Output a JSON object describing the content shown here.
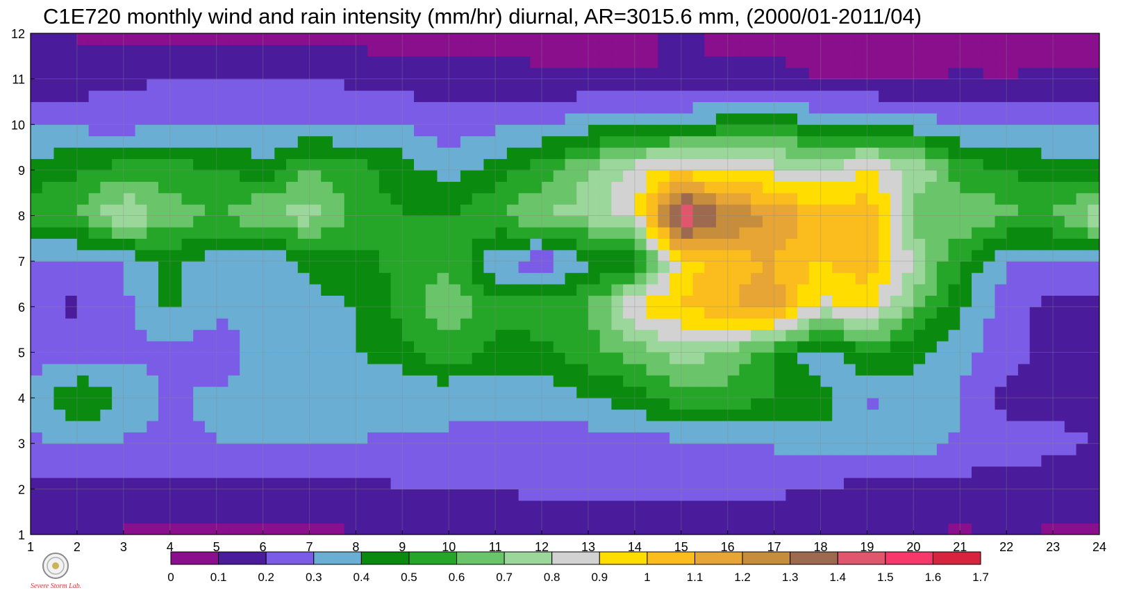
{
  "chart_data": {
    "type": "heatmap",
    "title": "C1E720 monthly wind and rain intensity (mm/hr) diurnal, AR=3015.6 mm, (2000/01-2011/04)",
    "xlabel": "",
    "ylabel": "",
    "x": [
      1,
      2,
      3,
      4,
      5,
      6,
      7,
      8,
      9,
      10,
      11,
      12,
      13,
      14,
      15,
      16,
      17,
      18,
      19,
      20,
      21,
      22,
      23,
      24
    ],
    "y": [
      1,
      2,
      3,
      4,
      5,
      6,
      7,
      8,
      9,
      10,
      11,
      12
    ],
    "xlim": [
      1,
      24
    ],
    "ylim": [
      1,
      12
    ],
    "grid": true,
    "z": [
      [
        0.1,
        0.1,
        0.09,
        0.08,
        0.09,
        0.08,
        0.08,
        0.09,
        0.1,
        0.13,
        0.12,
        0.11,
        0.12,
        0.11,
        0.09,
        0.11,
        0.12,
        0.13,
        0.11,
        0.1,
        0.09,
        0.1,
        0.09,
        0.08
      ],
      [
        0.15,
        0.18,
        0.17,
        0.17,
        0.16,
        0.17,
        0.17,
        0.18,
        0.19,
        0.2,
        0.2,
        0.22,
        0.24,
        0.25,
        0.24,
        0.25,
        0.22,
        0.19,
        0.16,
        0.15,
        0.15,
        0.16,
        0.15,
        0.14
      ],
      [
        0.28,
        0.32,
        0.29,
        0.27,
        0.3,
        0.31,
        0.3,
        0.3,
        0.29,
        0.3,
        0.29,
        0.27,
        0.24,
        0.26,
        0.27,
        0.28,
        0.31,
        0.35,
        0.38,
        0.36,
        0.29,
        0.25,
        0.22,
        0.2
      ],
      [
        0.3,
        0.5,
        0.38,
        0.28,
        0.33,
        0.33,
        0.32,
        0.31,
        0.32,
        0.3,
        0.31,
        0.32,
        0.4,
        0.45,
        0.55,
        0.55,
        0.5,
        0.45,
        0.28,
        0.35,
        0.3,
        0.17,
        0.17,
        0.18
      ],
      [
        0.26,
        0.26,
        0.28,
        0.27,
        0.23,
        0.34,
        0.35,
        0.4,
        0.45,
        0.58,
        0.45,
        0.48,
        0.55,
        0.65,
        0.75,
        0.7,
        0.5,
        0.32,
        0.48,
        0.43,
        0.32,
        0.25,
        0.15,
        0.14
      ],
      [
        0.22,
        0.18,
        0.27,
        0.42,
        0.33,
        0.3,
        0.38,
        0.4,
        0.55,
        0.67,
        0.55,
        0.55,
        0.6,
        0.9,
        1.0,
        1.1,
        1.15,
        0.85,
        0.95,
        0.65,
        0.42,
        0.25,
        0.15,
        0.18
      ],
      [
        0.28,
        0.28,
        0.3,
        0.45,
        0.32,
        0.3,
        0.42,
        0.47,
        0.52,
        0.6,
        0.32,
        0.21,
        0.38,
        0.45,
        0.95,
        1.05,
        1.1,
        1.0,
        1.05,
        0.8,
        0.5,
        0.3,
        0.3,
        0.3
      ],
      [
        0.55,
        0.6,
        0.81,
        0.65,
        0.6,
        0.7,
        0.75,
        0.55,
        0.5,
        0.5,
        0.6,
        0.7,
        0.75,
        0.85,
        1.55,
        1.3,
        1.2,
        1.05,
        1.1,
        0.65,
        0.7,
        0.62,
        0.6,
        0.81
      ],
      [
        0.45,
        0.48,
        0.55,
        0.55,
        0.5,
        0.45,
        0.6,
        0.55,
        0.45,
        0.35,
        0.45,
        0.55,
        0.7,
        0.85,
        0.95,
        0.9,
        0.85,
        0.8,
        0.9,
        0.8,
        0.55,
        0.5,
        0.45,
        0.42
      ],
      [
        0.3,
        0.28,
        0.25,
        0.3,
        0.3,
        0.28,
        0.3,
        0.28,
        0.3,
        0.25,
        0.28,
        0.3,
        0.35,
        0.4,
        0.4,
        0.45,
        0.5,
        0.4,
        0.4,
        0.35,
        0.3,
        0.32,
        0.3,
        0.28
      ],
      [
        0.1,
        0.15,
        0.18,
        0.2,
        0.2,
        0.19,
        0.22,
        0.18,
        0.15,
        0.15,
        0.14,
        0.12,
        0.12,
        0.11,
        0.1,
        0.12,
        0.14,
        0.1,
        0.09,
        0.09,
        0.11,
        0.1,
        0.12,
        0.11
      ],
      [
        0.12,
        0.09,
        0.07,
        0.06,
        0.06,
        0.06,
        0.07,
        0.06,
        0.05,
        0.05,
        0.06,
        0.06,
        0.06,
        0.07,
        0.12,
        0.07,
        0.06,
        0.05,
        0.05,
        0.05,
        0.06,
        0.06,
        0.06,
        0.05
      ]
    ],
    "levels": [
      0,
      0.1,
      0.2,
      0.3,
      0.4,
      0.5,
      0.6,
      0.7,
      0.8,
      0.9,
      1,
      1.1,
      1.2,
      1.3,
      1.4,
      1.5,
      1.6,
      1.7
    ],
    "level_labels": [
      "0",
      "0.1",
      "0.2",
      "0.3",
      "0.4",
      "0.5",
      "0.6",
      "0.7",
      "0.8",
      "0.9",
      "1",
      "1.1",
      "1.2",
      "1.3",
      "1.4",
      "1.5",
      "1.6",
      "1.7"
    ],
    "colors": [
      "#8a0f8c",
      "#4a1c9c",
      "#7a5ce6",
      "#6aaed3",
      "#0a8a0e",
      "#26a628",
      "#6ac46a",
      "#9bd69b",
      "#d2d2d2",
      "#ffdd00",
      "#fbbc1e",
      "#e6a534",
      "#c58d3c",
      "#9d6a50",
      "#e0566c",
      "#f6396a",
      "#d6243e"
    ],
    "contour_color": "#f4a640",
    "colorbar_position": "bottom"
  },
  "logo": {
    "text": "Severe Storm Lab."
  }
}
